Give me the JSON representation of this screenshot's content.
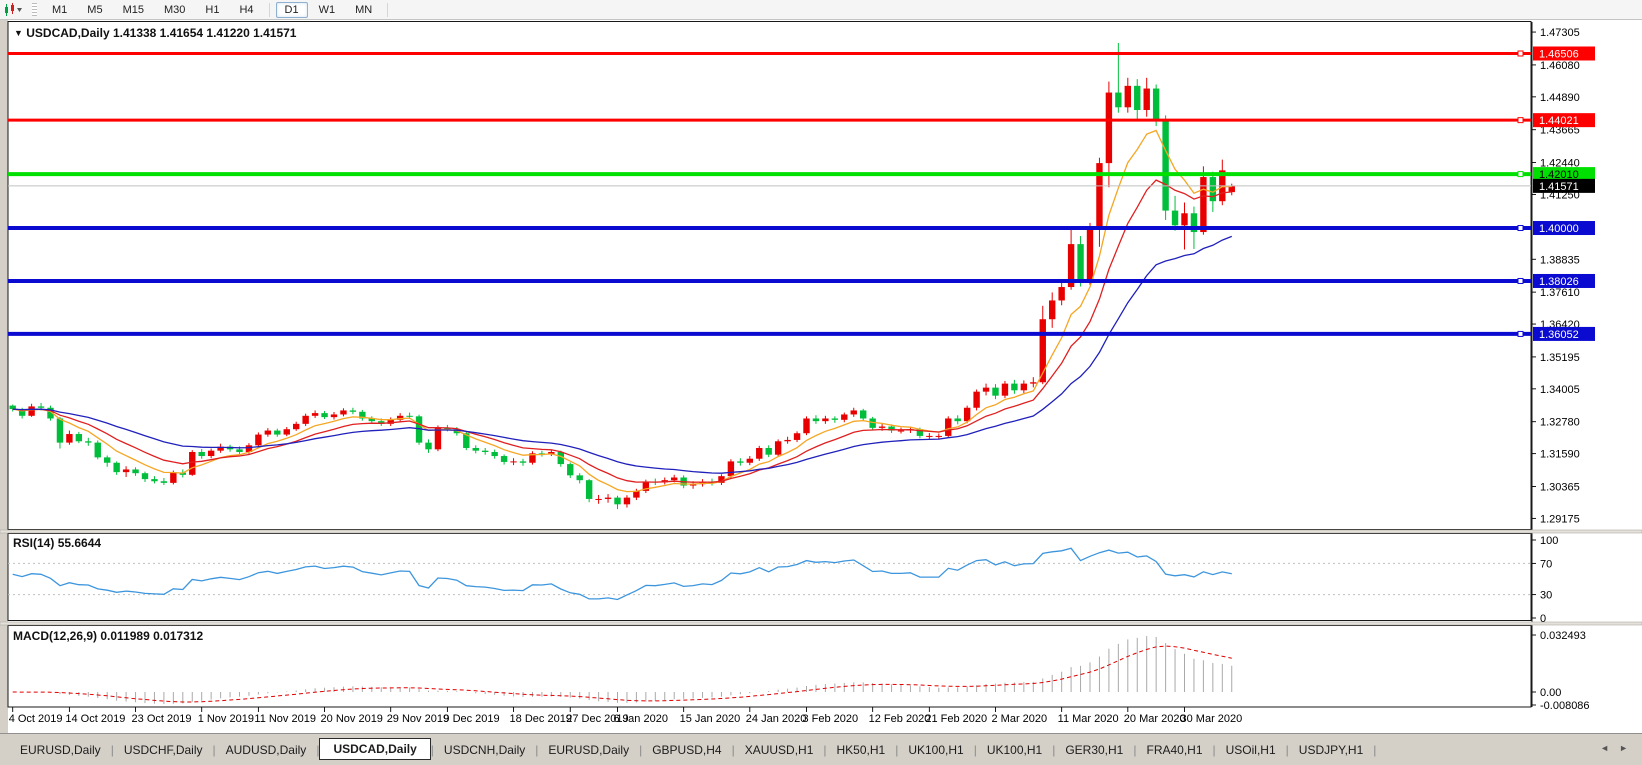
{
  "toolbar": {
    "timeframes": [
      "M1",
      "M5",
      "M15",
      "M30",
      "H1",
      "H4",
      "D1",
      "W1",
      "MN"
    ],
    "active_timeframe": "D1"
  },
  "header": {
    "caret": "▼",
    "symbol": "USDCAD,Daily",
    "ohlc": "1.41338 1.41654 1.41220 1.41571"
  },
  "price_axis": {
    "ticks": [
      "1.47305",
      "1.46080",
      "1.44890",
      "1.43665",
      "1.42440",
      "1.41250",
      "1.38835",
      "1.37610",
      "1.36420",
      "1.35195",
      "1.34005",
      "1.32780",
      "1.31590",
      "1.30365",
      "1.29175"
    ]
  },
  "hlines": [
    {
      "price": 1.46506,
      "label": "1.46506",
      "color": "#FF0000",
      "width": 3,
      "text_color": "#FFFFFF"
    },
    {
      "price": 1.44021,
      "label": "1.44021",
      "color": "#FF0000",
      "width": 3,
      "text_color": "#FFFFFF"
    },
    {
      "price": 1.4201,
      "label": "1.42010",
      "color": "#00E000",
      "width": 4,
      "text_color": "#000000"
    },
    {
      "price": 1.4,
      "label": "1.40000",
      "color": "#0A0AD0",
      "width": 4,
      "text_color": "#FFFFFF"
    },
    {
      "price": 1.38026,
      "label": "1.38026",
      "color": "#0A0AD0",
      "width": 4,
      "text_color": "#FFFFFF"
    },
    {
      "price": 1.36052,
      "label": "1.36052",
      "color": "#0A0AD0",
      "width": 4,
      "text_color": "#FFFFFF"
    }
  ],
  "bid": {
    "price": 1.41571,
    "label": "1.41571",
    "line_color": "#C0C0C0",
    "badge_color": "#000000",
    "text_color": "#FFFFFF"
  },
  "chart_data": {
    "type": "candlestick",
    "symbol": "USDCAD",
    "timeframe": "Daily",
    "bull_color": "#E80000",
    "bear_color": "#00BE3C",
    "price_range": {
      "top": 1.4768,
      "bottom": 1.2878
    },
    "moving_averages": [
      {
        "period": 7,
        "color": "#F5A623"
      },
      {
        "period": 13,
        "color": "#E02020"
      },
      {
        "period": 28,
        "color": "#2020BB"
      }
    ],
    "x_labels": [
      {
        "i": 0,
        "t": "4 Oct 2019"
      },
      {
        "i": 6,
        "t": "14 Oct 2019"
      },
      {
        "i": 13,
        "t": "23 Oct 2019"
      },
      {
        "i": 20,
        "t": "1 Nov 2019"
      },
      {
        "i": 26,
        "t": "11 Nov 2019"
      },
      {
        "i": 33,
        "t": "20 Nov 2019"
      },
      {
        "i": 40,
        "t": "29 Nov 2019"
      },
      {
        "i": 46,
        "t": "9 Dec 2019"
      },
      {
        "i": 53,
        "t": "18 Dec 2019"
      },
      {
        "i": 59,
        "t": "27 Dec 2019"
      },
      {
        "i": 64,
        "t": "6 Jan 2020"
      },
      {
        "i": 71,
        "t": "15 Jan 2020"
      },
      {
        "i": 78,
        "t": "24 Jan 2020"
      },
      {
        "i": 84,
        "t": "3 Feb 2020"
      },
      {
        "i": 91,
        "t": "12 Feb 2020"
      },
      {
        "i": 97,
        "t": "21 Feb 2020"
      },
      {
        "i": 104,
        "t": "2 Mar 2020"
      },
      {
        "i": 111,
        "t": "11 Mar 2020"
      },
      {
        "i": 118,
        "t": "20 Mar 2020"
      },
      {
        "i": 124,
        "t": "30 Mar 2020"
      }
    ],
    "candles": [
      [
        1.3338,
        1.3342,
        1.3316,
        1.3325
      ],
      [
        1.3325,
        1.333,
        1.329,
        1.33
      ],
      [
        1.33,
        1.3345,
        1.3296,
        1.3335
      ],
      [
        1.3335,
        1.3348,
        1.332,
        1.333
      ],
      [
        1.333,
        1.3338,
        1.3282,
        1.329
      ],
      [
        1.329,
        1.3296,
        1.3178,
        1.32
      ],
      [
        1.32,
        1.3245,
        1.3192,
        1.3232
      ],
      [
        1.3232,
        1.324,
        1.3198,
        1.3205
      ],
      [
        1.3205,
        1.3218,
        1.3188,
        1.32
      ],
      [
        1.32,
        1.3208,
        1.3138,
        1.3145
      ],
      [
        1.3145,
        1.3152,
        1.311,
        1.3125
      ],
      [
        1.3125,
        1.313,
        1.308,
        1.309
      ],
      [
        1.309,
        1.3112,
        1.3072,
        1.31
      ],
      [
        1.31,
        1.3108,
        1.3076,
        1.3086
      ],
      [
        1.3086,
        1.3092,
        1.3053,
        1.3064
      ],
      [
        1.3064,
        1.3075,
        1.3048,
        1.3056
      ],
      [
        1.3056,
        1.3068,
        1.3042,
        1.305
      ],
      [
        1.305,
        1.3096,
        1.3044,
        1.3088
      ],
      [
        1.3088,
        1.31,
        1.307,
        1.308
      ],
      [
        1.308,
        1.3172,
        1.3076,
        1.3165
      ],
      [
        1.3165,
        1.3176,
        1.314,
        1.315
      ],
      [
        1.315,
        1.3178,
        1.3142,
        1.317
      ],
      [
        1.317,
        1.3196,
        1.3162,
        1.3185
      ],
      [
        1.3185,
        1.3192,
        1.3166,
        1.3175
      ],
      [
        1.3175,
        1.3186,
        1.3158,
        1.3165
      ],
      [
        1.3165,
        1.3198,
        1.3158,
        1.319
      ],
      [
        1.319,
        1.3238,
        1.3184,
        1.323
      ],
      [
        1.323,
        1.3254,
        1.3222,
        1.3245
      ],
      [
        1.3245,
        1.3252,
        1.3222,
        1.323
      ],
      [
        1.323,
        1.3258,
        1.3224,
        1.325
      ],
      [
        1.325,
        1.3278,
        1.3244,
        1.327
      ],
      [
        1.327,
        1.3308,
        1.3262,
        1.33
      ],
      [
        1.33,
        1.332,
        1.3292,
        1.331
      ],
      [
        1.331,
        1.3318,
        1.3288,
        1.3295
      ],
      [
        1.3295,
        1.3314,
        1.3286,
        1.3305
      ],
      [
        1.3305,
        1.3328,
        1.3298,
        1.332
      ],
      [
        1.332,
        1.333,
        1.3306,
        1.3315
      ],
      [
        1.3315,
        1.3322,
        1.3282,
        1.329
      ],
      [
        1.329,
        1.3298,
        1.327,
        1.328
      ],
      [
        1.328,
        1.329,
        1.3262,
        1.327
      ],
      [
        1.327,
        1.3294,
        1.3262,
        1.3285
      ],
      [
        1.3285,
        1.331,
        1.3278,
        1.33
      ],
      [
        1.33,
        1.3312,
        1.3288,
        1.3298
      ],
      [
        1.3298,
        1.3304,
        1.3192,
        1.32
      ],
      [
        1.32,
        1.3212,
        1.3162,
        1.3175
      ],
      [
        1.3175,
        1.3264,
        1.3168,
        1.3255
      ],
      [
        1.3255,
        1.3266,
        1.3242,
        1.325
      ],
      [
        1.325,
        1.3258,
        1.3226,
        1.3235
      ],
      [
        1.3235,
        1.3242,
        1.3172,
        1.318
      ],
      [
        1.318,
        1.319,
        1.316,
        1.317
      ],
      [
        1.317,
        1.318,
        1.3155,
        1.3165
      ],
      [
        1.3165,
        1.3174,
        1.314,
        1.315
      ],
      [
        1.315,
        1.3156,
        1.3118,
        1.3128
      ],
      [
        1.3128,
        1.3142,
        1.3116,
        1.313
      ],
      [
        1.313,
        1.314,
        1.3114,
        1.3125
      ],
      [
        1.3125,
        1.3168,
        1.3118,
        1.316
      ],
      [
        1.316,
        1.317,
        1.3148,
        1.3158
      ],
      [
        1.3158,
        1.3174,
        1.315,
        1.3165
      ],
      [
        1.3165,
        1.317,
        1.311,
        1.312
      ],
      [
        1.312,
        1.3126,
        1.3068,
        1.3078
      ],
      [
        1.3078,
        1.3086,
        1.3048,
        1.306
      ],
      [
        1.306,
        1.3064,
        1.2978,
        1.299
      ],
      [
        1.299,
        1.3005,
        1.2972,
        1.299
      ],
      [
        1.299,
        1.3008,
        1.2976,
        1.2995
      ],
      [
        1.2995,
        1.3002,
        1.2952,
        1.297
      ],
      [
        1.297,
        1.3004,
        1.2958,
        1.2995
      ],
      [
        1.2995,
        1.3028,
        1.2986,
        1.302
      ],
      [
        1.302,
        1.3062,
        1.3012,
        1.3055
      ],
      [
        1.3055,
        1.3066,
        1.3042,
        1.3052
      ],
      [
        1.3052,
        1.307,
        1.3044,
        1.306
      ],
      [
        1.306,
        1.308,
        1.3052,
        1.307
      ],
      [
        1.307,
        1.3078,
        1.303,
        1.304
      ],
      [
        1.304,
        1.3056,
        1.3028,
        1.3045
      ],
      [
        1.3045,
        1.3064,
        1.3036,
        1.3055
      ],
      [
        1.3055,
        1.3066,
        1.304,
        1.305
      ],
      [
        1.305,
        1.3082,
        1.3042,
        1.3075
      ],
      [
        1.3075,
        1.3138,
        1.3068,
        1.313
      ],
      [
        1.313,
        1.3142,
        1.3114,
        1.3125
      ],
      [
        1.3125,
        1.315,
        1.3116,
        1.314
      ],
      [
        1.314,
        1.3188,
        1.3132,
        1.318
      ],
      [
        1.318,
        1.319,
        1.3146,
        1.3155
      ],
      [
        1.3155,
        1.3212,
        1.3148,
        1.3205
      ],
      [
        1.3205,
        1.3222,
        1.3196,
        1.321
      ],
      [
        1.321,
        1.3242,
        1.3202,
        1.3235
      ],
      [
        1.3235,
        1.3298,
        1.3228,
        1.329
      ],
      [
        1.329,
        1.3302,
        1.327,
        1.328
      ],
      [
        1.328,
        1.33,
        1.327,
        1.329
      ],
      [
        1.329,
        1.3298,
        1.3274,
        1.3285
      ],
      [
        1.3285,
        1.3312,
        1.3276,
        1.3305
      ],
      [
        1.3305,
        1.333,
        1.3296,
        1.332
      ],
      [
        1.332,
        1.3326,
        1.3282,
        1.329
      ],
      [
        1.329,
        1.3296,
        1.3246,
        1.3255
      ],
      [
        1.3255,
        1.327,
        1.3244,
        1.326
      ],
      [
        1.326,
        1.3268,
        1.3236,
        1.3245
      ],
      [
        1.3245,
        1.3256,
        1.3234,
        1.3245
      ],
      [
        1.3245,
        1.326,
        1.3236,
        1.325
      ],
      [
        1.325,
        1.3256,
        1.3216,
        1.3225
      ],
      [
        1.3225,
        1.3236,
        1.3214,
        1.3225
      ],
      [
        1.3225,
        1.3234,
        1.3212,
        1.3225
      ],
      [
        1.3225,
        1.3298,
        1.3218,
        1.329
      ],
      [
        1.329,
        1.3302,
        1.3268,
        1.328
      ],
      [
        1.328,
        1.3338,
        1.3272,
        1.333
      ],
      [
        1.333,
        1.3398,
        1.332,
        1.339
      ],
      [
        1.339,
        1.342,
        1.3376,
        1.3405
      ],
      [
        1.3405,
        1.3418,
        1.3362,
        1.3375
      ],
      [
        1.3375,
        1.343,
        1.3366,
        1.342
      ],
      [
        1.342,
        1.3434,
        1.3382,
        1.3395
      ],
      [
        1.3395,
        1.3432,
        1.3384,
        1.342
      ],
      [
        1.342,
        1.3444,
        1.3406,
        1.3425
      ],
      [
        1.3425,
        1.371,
        1.3418,
        1.366
      ],
      [
        1.366,
        1.376,
        1.3628,
        1.373
      ],
      [
        1.373,
        1.38,
        1.3712,
        1.378
      ],
      [
        1.378,
        1.3996,
        1.377,
        1.394
      ],
      [
        1.394,
        1.397,
        1.3782,
        1.38
      ],
      [
        1.3802,
        1.4019,
        1.3788,
        1.3997
      ],
      [
        1.3997,
        1.4262,
        1.393,
        1.4242
      ],
      [
        1.4242,
        1.4546,
        1.4152,
        1.4505
      ],
      [
        1.4505,
        1.469,
        1.443,
        1.445
      ],
      [
        1.445,
        1.456,
        1.443,
        1.453
      ],
      [
        1.453,
        1.4555,
        1.44,
        1.444
      ],
      [
        1.444,
        1.456,
        1.4415,
        1.452
      ],
      [
        1.452,
        1.4535,
        1.438,
        1.4405
      ],
      [
        1.4405,
        1.442,
        1.403,
        1.4065
      ],
      [
        1.4065,
        1.412,
        1.399,
        1.401
      ],
      [
        1.401,
        1.4095,
        1.392,
        1.4055
      ],
      [
        1.4055,
        1.408,
        1.3922,
        1.3985
      ],
      [
        1.3985,
        1.423,
        1.3975,
        1.419
      ],
      [
        1.419,
        1.421,
        1.406,
        1.41
      ],
      [
        1.41,
        1.4255,
        1.4085,
        1.4215
      ],
      [
        1.41338,
        1.41654,
        1.4122,
        1.41571
      ]
    ]
  },
  "rsi": {
    "name": "RSI(14)",
    "value": "55.6644",
    "period": 14,
    "levels": [
      70,
      30
    ],
    "axis": [
      "100",
      "70",
      "30",
      "0"
    ],
    "color": "#3D96DD",
    "level_color": "#C0C0C0"
  },
  "macd": {
    "name": "MACD(12,26,9)",
    "values": "0.011989 0.017312",
    "params": [
      12,
      26,
      9
    ],
    "axis": [
      {
        "v": 0.032493,
        "t": "0.032493"
      },
      {
        "v": 0.0,
        "t": "0.00"
      },
      {
        "v": -0.008086,
        "t": "-0.008086"
      }
    ],
    "signal_color": "#E00000",
    "hist_color": "#A9A9A9"
  },
  "tabs": {
    "items": [
      {
        "label": "EURUSD,Daily",
        "active": false
      },
      {
        "label": "USDCHF,Daily",
        "active": false
      },
      {
        "label": "AUDUSD,Daily",
        "active": false
      },
      {
        "label": "USDCAD,Daily",
        "active": true
      },
      {
        "label": "USDCNH,Daily",
        "active": false
      },
      {
        "label": "EURUSD,Daily",
        "active": false
      },
      {
        "label": "GBPUSD,H4",
        "active": false
      },
      {
        "label": "XAUUSD,H1",
        "active": false
      },
      {
        "label": "HK50,H1",
        "active": false
      },
      {
        "label": "UK100,H1",
        "active": false
      },
      {
        "label": "UK100,H1",
        "active": false
      },
      {
        "label": "GER30,H1",
        "active": false
      },
      {
        "label": "FRA40,H1",
        "active": false
      },
      {
        "label": "USOil,H1",
        "active": false
      },
      {
        "label": "USDJPY,H1",
        "active": false
      }
    ],
    "scroll_left": "◄",
    "scroll_right": "►"
  }
}
